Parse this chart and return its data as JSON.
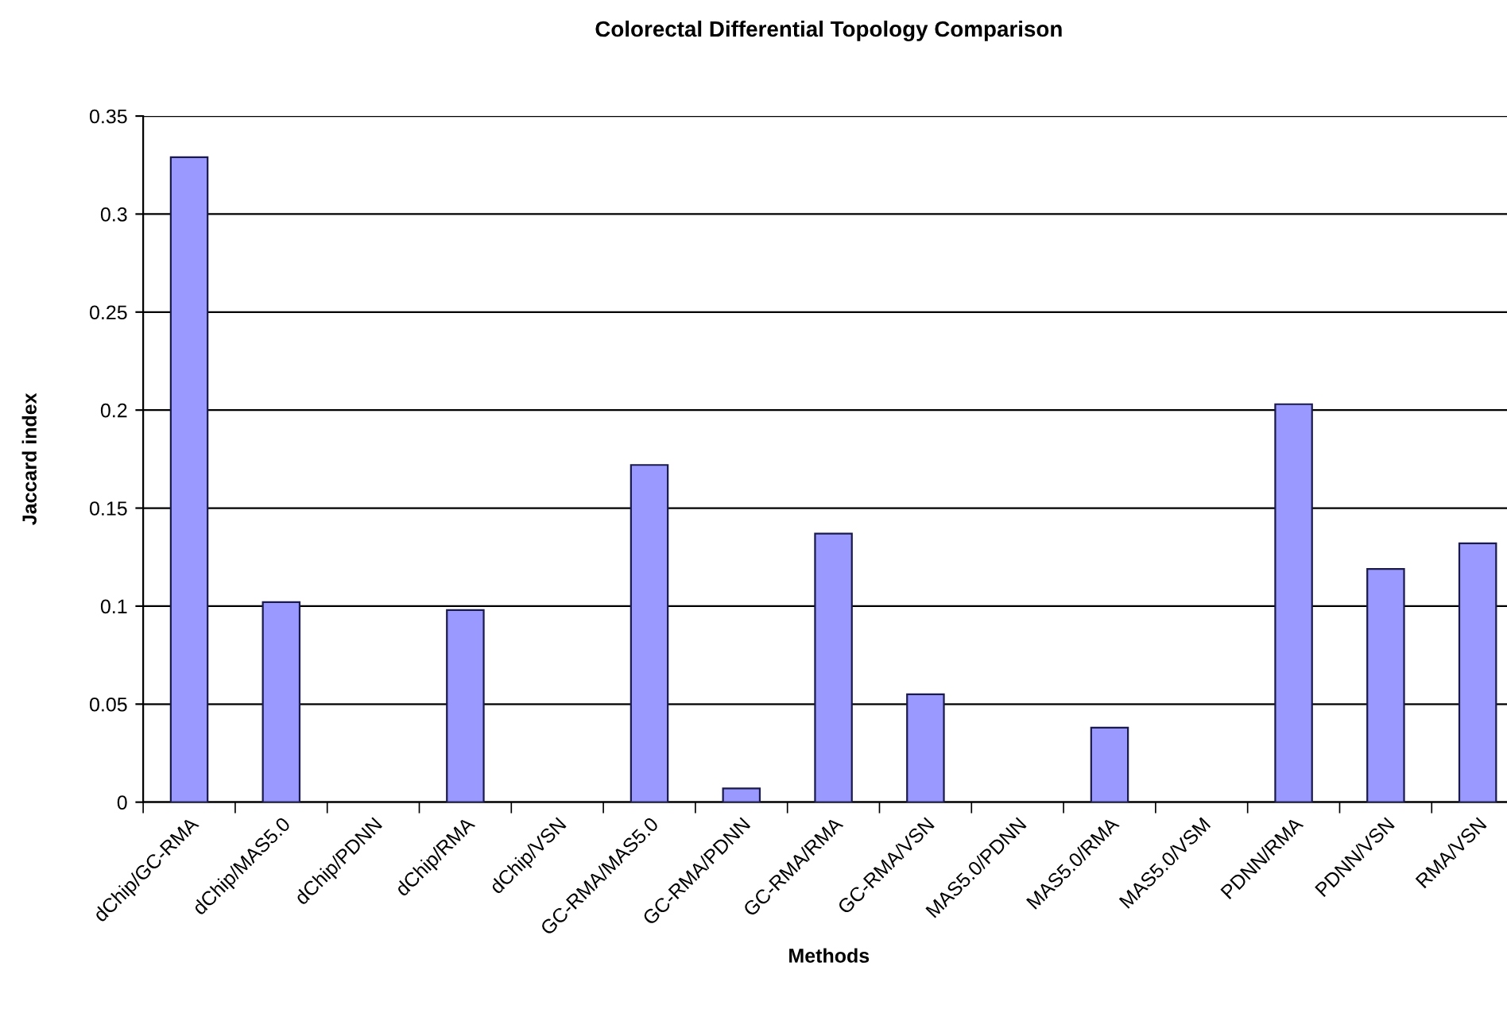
{
  "chart_data": {
    "type": "bar",
    "title": "Colorectal Differential Topology Comparison",
    "xlabel": "Methods",
    "ylabel": "Jaccard index",
    "categories": [
      "dChip/GC-RMA",
      "dChip/MAS5.0",
      "dChip/PDNN",
      "dChip/RMA",
      "dChip/VSN",
      "GC-RMA/MAS5.0",
      "GC-RMA/PDNN",
      "GC-RMA/RMA",
      "GC-RMA/VSN",
      "MAS5.0/PDNN",
      "MAS5.0/RMA",
      "MAS5.0/VSM",
      "PDNN/RMA",
      "PDNN/VSN",
      "RMA/VSN"
    ],
    "values": [
      0.329,
      0.102,
      0,
      0.098,
      0,
      0.172,
      0.007,
      0.137,
      0.055,
      0,
      0.038,
      0,
      0.203,
      0.119,
      0.132
    ],
    "color": "#9999ff",
    "ylim": [
      0,
      0.35
    ],
    "yticks": [
      0,
      0.05,
      0.1,
      0.15,
      0.2,
      0.25,
      0.3,
      0.35
    ],
    "grid": "y",
    "legend": false
  }
}
